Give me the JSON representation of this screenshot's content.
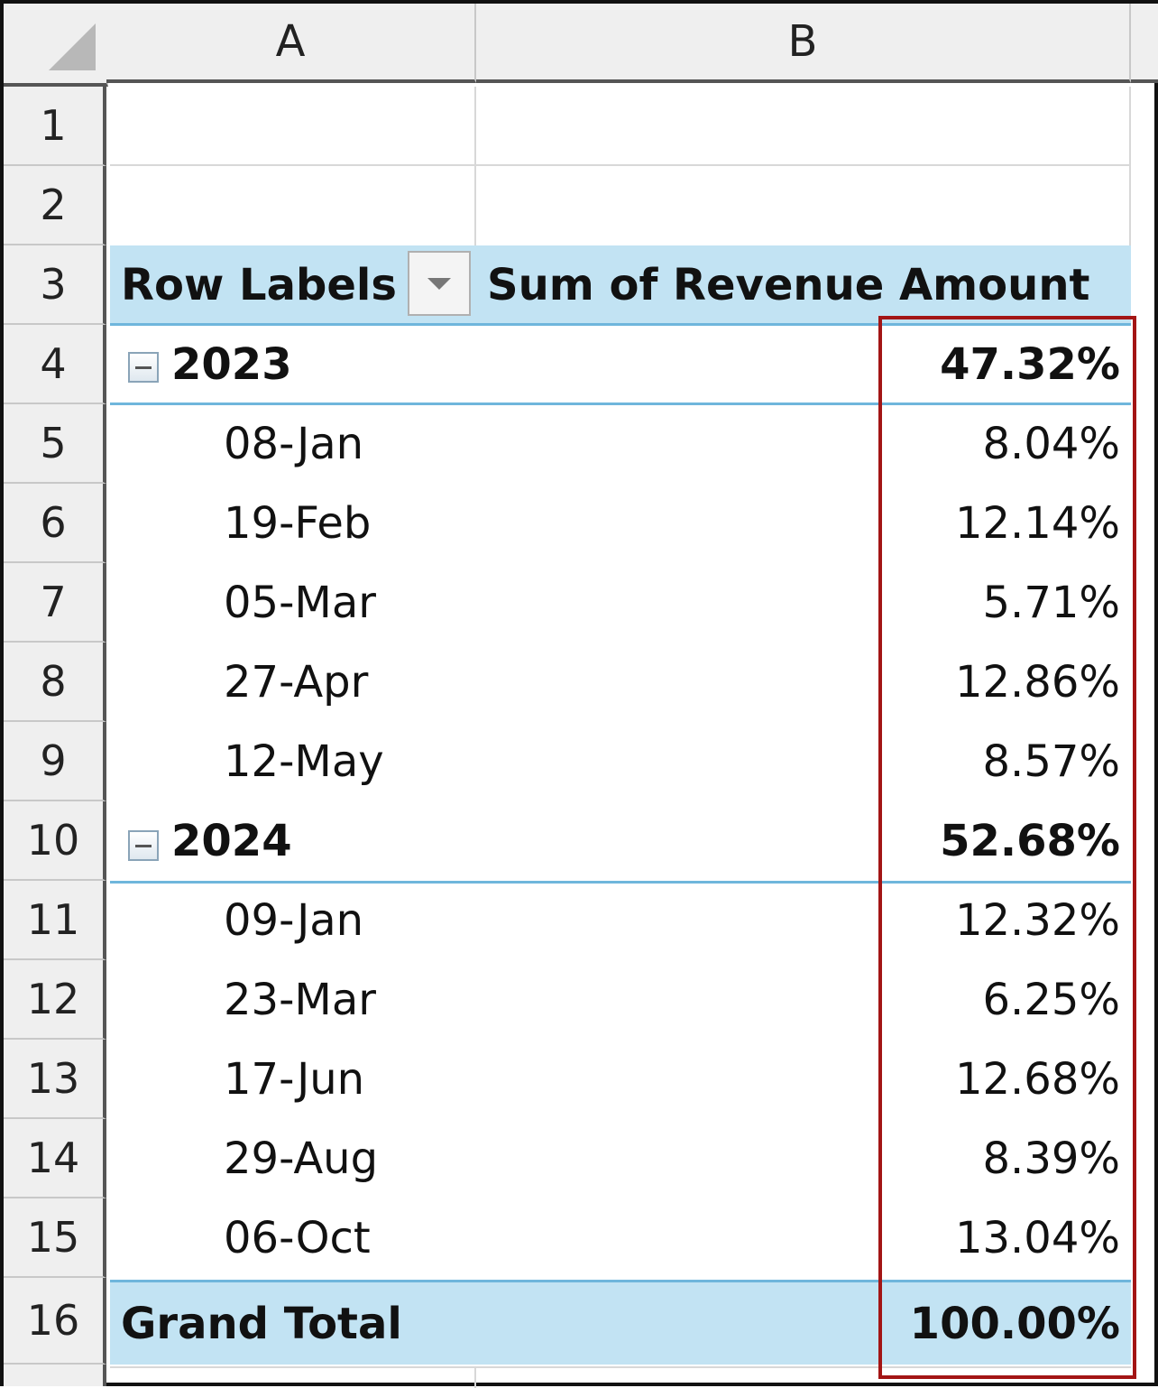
{
  "columns": {
    "a": "A",
    "b": "B"
  },
  "row_numbers": [
    "1",
    "2",
    "3",
    "4",
    "5",
    "6",
    "7",
    "8",
    "9",
    "10",
    "11",
    "12",
    "13",
    "14",
    "15",
    "16"
  ],
  "pivot": {
    "header": {
      "row_labels": "Row Labels",
      "value_field": "Sum of Revenue Amount"
    },
    "groups": [
      {
        "year": "2023",
        "subtotal": "47.32%",
        "items": [
          {
            "label": "08-Jan",
            "value": "8.04%"
          },
          {
            "label": "19-Feb",
            "value": "12.14%"
          },
          {
            "label": "05-Mar",
            "value": "5.71%"
          },
          {
            "label": "27-Apr",
            "value": "12.86%"
          },
          {
            "label": "12-May",
            "value": "8.57%"
          }
        ]
      },
      {
        "year": "2024",
        "subtotal": "52.68%",
        "items": [
          {
            "label": "09-Jan",
            "value": "12.32%"
          },
          {
            "label": "23-Mar",
            "value": "6.25%"
          },
          {
            "label": "17-Jun",
            "value": "12.68%"
          },
          {
            "label": "29-Aug",
            "value": "8.39%"
          },
          {
            "label": "06-Oct",
            "value": "13.04%"
          }
        ]
      }
    ],
    "grand_total": {
      "label": "Grand Total",
      "value": "100.00%"
    }
  },
  "colors": {
    "header_band": "#c2e3f3",
    "band_line": "#6fb6dc",
    "highlight_border": "#a31515"
  }
}
